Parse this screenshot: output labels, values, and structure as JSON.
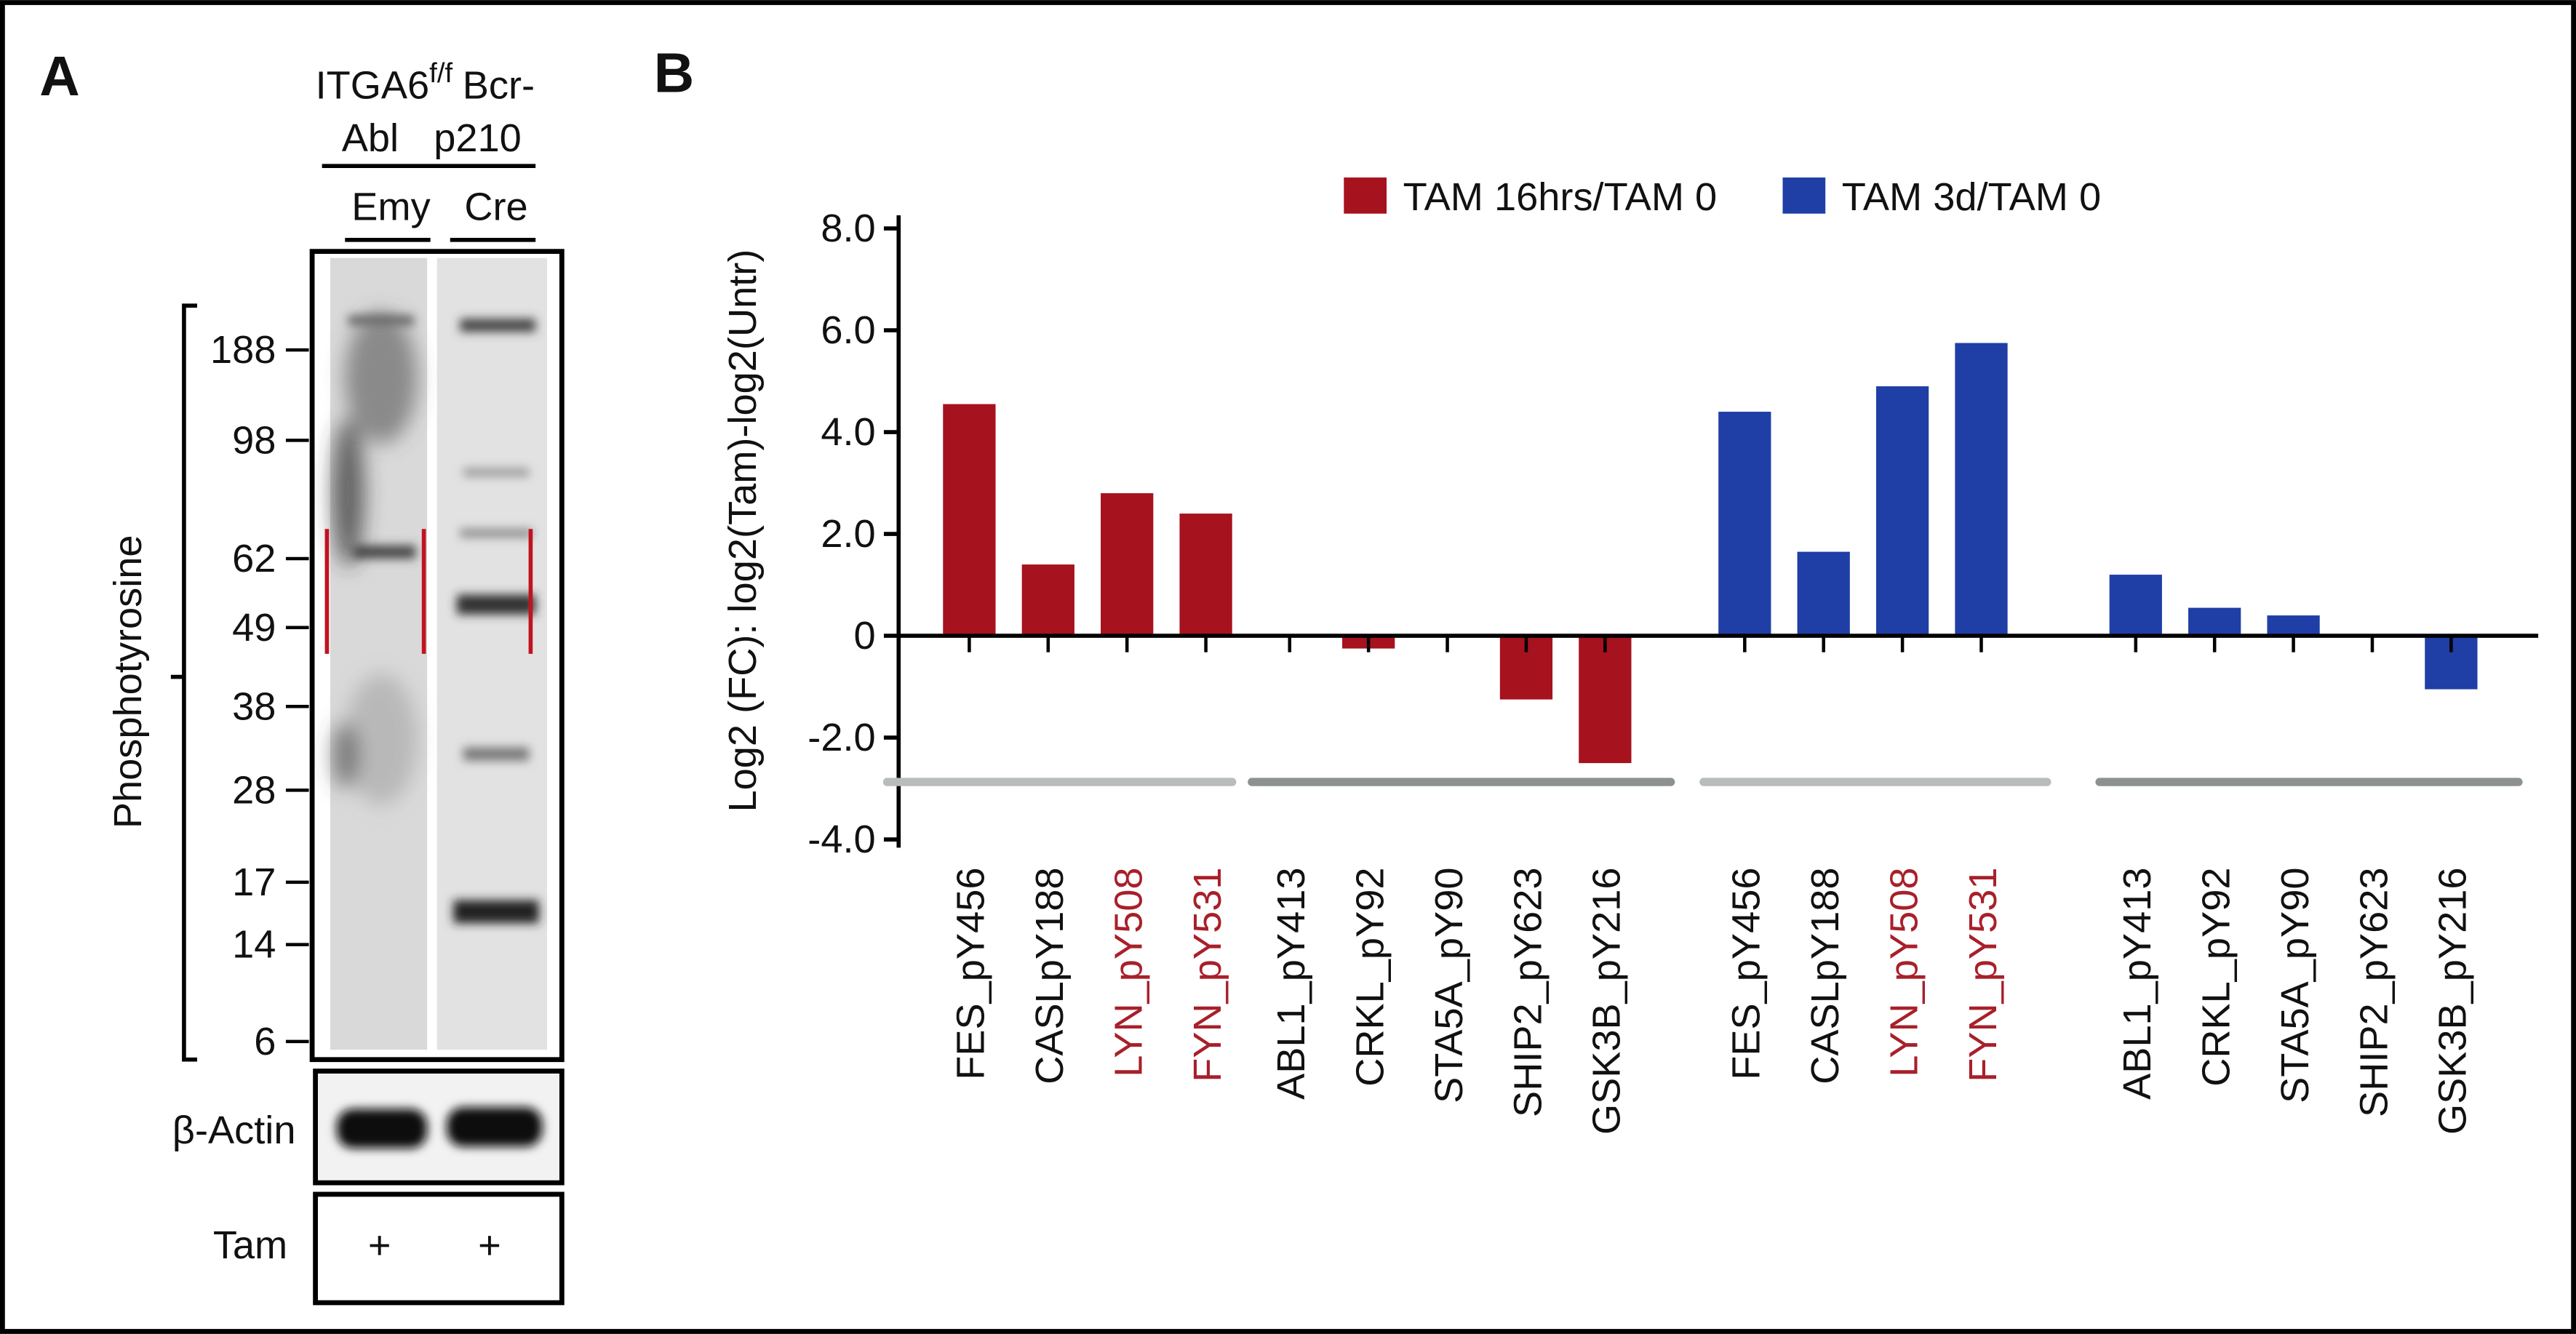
{
  "panel_a": {
    "label": "A",
    "genotype": {
      "gene": "ITGA6",
      "superscript": "f/f",
      "line1_end": "Bcr-",
      "line2": [
        "Abl",
        "p210"
      ]
    },
    "lanes": [
      "Emy",
      "Cre"
    ],
    "ylabel": "Phosphotyrosine",
    "markers": [
      188,
      98,
      62,
      49,
      38,
      28,
      17,
      14,
      6
    ],
    "loading_control": "β-Actin",
    "treatment": {
      "label": "Tam",
      "lanes": [
        "+",
        "+"
      ]
    }
  },
  "chart_data": {
    "type": "bar",
    "panel_label": "B",
    "ylabel": "Log2 (FC): log2(Tam)-log2(Untr)",
    "categories": [
      "FES_pY456",
      "CASLpY188",
      "LYN_pY508",
      "FYN_pY531",
      "ABL1_pY413",
      "CRKL_pY92",
      "STA5A_pY90",
      "SHIP2_pY623",
      "GSK3B_pY216",
      "FES_pY456",
      "CASLpY188",
      "LYN_pY508",
      "FYN_pY531",
      "ABL1_pY413",
      "CRKL_pY92",
      "STA5A_pY90",
      "SHIP2_pY623",
      "GSK3B_pY216"
    ],
    "category_colors": [
      "#111111",
      "#111111",
      "#a8202a",
      "#a8202a",
      "#111111",
      "#111111",
      "#111111",
      "#111111",
      "#111111",
      "#111111",
      "#111111",
      "#a8202a",
      "#a8202a",
      "#111111",
      "#111111",
      "#111111",
      "#111111",
      "#111111"
    ],
    "series": [
      {
        "name": "TAM 16hrs/TAM 0",
        "color": "#a6121e",
        "values": [
          4.55,
          1.4,
          2.8,
          2.4,
          0,
          -0.25,
          0,
          -1.25,
          -2.5,
          null,
          null,
          null,
          null,
          null,
          null,
          null,
          null,
          null
        ]
      },
      {
        "name": "TAM 3d/TAM 0",
        "color": "#1f3fa6",
        "values": [
          null,
          null,
          null,
          null,
          null,
          null,
          null,
          null,
          null,
          4.4,
          1.65,
          4.9,
          5.75,
          1.2,
          0.55,
          0.4,
          0,
          -1.05
        ]
      }
    ],
    "ylim": [
      -4,
      8
    ],
    "yticks": [
      {
        "value": 8,
        "label": "8.0"
      },
      {
        "value": 6,
        "label": "6.0"
      },
      {
        "value": 4,
        "label": "4.0"
      },
      {
        "value": 2,
        "label": "2.0"
      },
      0,
      {
        "value": -2,
        "label": "-2.0"
      },
      {
        "value": -4,
        "label": "-4.0"
      }
    ],
    "grid": false,
    "legend": "top"
  }
}
